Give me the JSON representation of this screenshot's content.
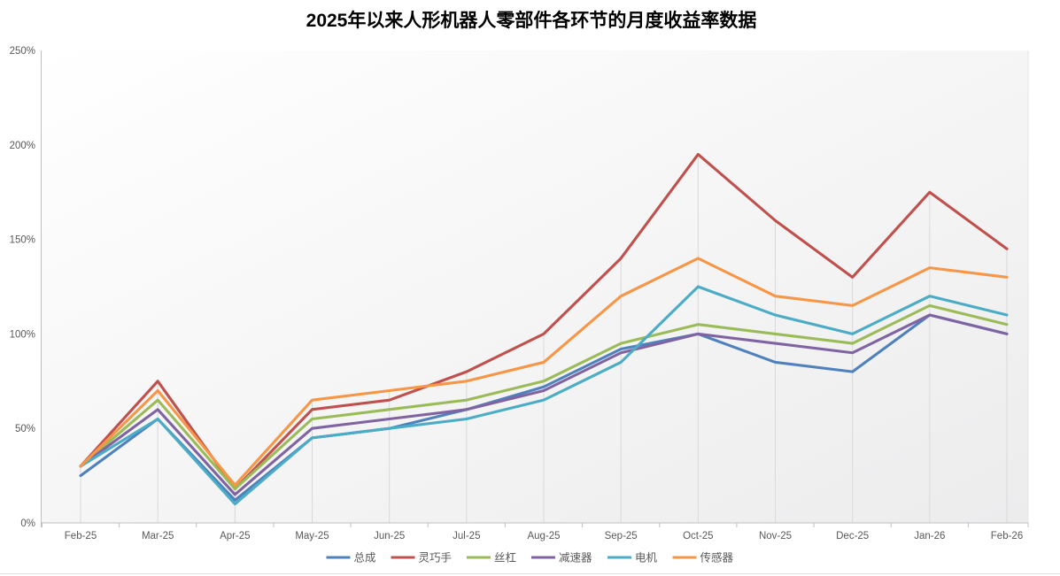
{
  "title": "2025年以来人形机器人零部件各环节的月度收益率数据",
  "chart_data": {
    "type": "line",
    "title": "2025年以来人形机器人零部件各环节的月度收益率数据",
    "unit": "%",
    "categories": [
      "Feb-25",
      "Mar-25",
      "Apr-25",
      "May-25",
      "Jun-25",
      "Jul-25",
      "Aug-25",
      "Sep-25",
      "Oct-25",
      "Nov-25",
      "Dec-25",
      "Jan-26",
      "Feb-26"
    ],
    "series": [
      {
        "name": "总成",
        "color": "#4F81BD",
        "values": [
          25,
          55,
          12,
          45,
          50,
          60,
          72,
          92,
          100,
          85,
          80,
          110,
          100
        ]
      },
      {
        "name": "灵巧手",
        "color": "#C0504D",
        "values": [
          30,
          75,
          18,
          60,
          65,
          80,
          100,
          140,
          195,
          160,
          130,
          175,
          145
        ]
      },
      {
        "name": "丝杠",
        "color": "#9BBB59",
        "values": [
          30,
          65,
          18,
          55,
          60,
          65,
          75,
          95,
          105,
          100,
          95,
          115,
          105
        ]
      },
      {
        "name": "减速器",
        "color": "#8064A2",
        "values": [
          30,
          60,
          15,
          50,
          55,
          60,
          70,
          90,
          100,
          95,
          90,
          110,
          100
        ]
      },
      {
        "name": "电机",
        "color": "#4BACC6",
        "values": [
          30,
          55,
          10,
          45,
          50,
          55,
          65,
          85,
          125,
          110,
          100,
          120,
          110
        ]
      },
      {
        "name": "传感器",
        "color": "#F79646",
        "values": [
          30,
          70,
          20,
          65,
          70,
          75,
          85,
          120,
          140,
          120,
          115,
          135,
          130
        ]
      }
    ],
    "y_tick_labels": [
      "0%",
      "50%",
      "100%",
      "150%",
      "200%",
      "250%"
    ],
    "y_tick_values": [
      0,
      50,
      100,
      150,
      200,
      250
    ],
    "ylim": [
      0,
      250
    ],
    "xlabel": "",
    "ylabel": "",
    "legend_position": "bottom",
    "grid": "vertical drop lines at each month, no horizontal gridlines",
    "colors": {
      "axis_line": "#bfbfbf",
      "drop_line": "#d9d9d9",
      "axis_label": "#595959",
      "plot_bg_from": "#ffffff",
      "plot_bg_to": "#ececed",
      "chart_border": "#e0e0e0"
    }
  }
}
